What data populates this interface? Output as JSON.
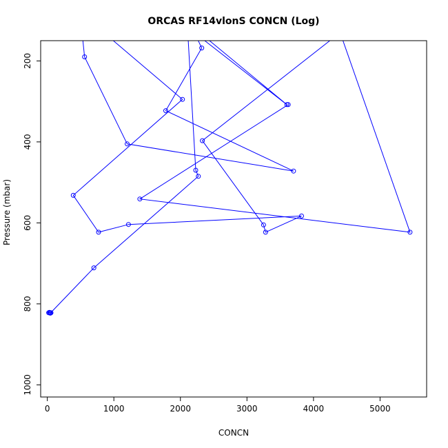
{
  "chart_data": {
    "type": "line",
    "title": "ORCAS RF14vlonS CONCN (Log)",
    "xlabel": "CONCN",
    "ylabel": "Pressure (mbar)",
    "xlim": [
      -100,
      5700
    ],
    "ylim": [
      1030,
      150
    ],
    "y_reversed": true,
    "grid": false,
    "x_ticks": [
      0,
      1000,
      2000,
      3000,
      4000,
      5000
    ],
    "y_ticks": [
      200,
      400,
      600,
      800,
      1000
    ],
    "x_tick_labels": [
      "0",
      "1000",
      "2000",
      "3000",
      "4000",
      "5000"
    ],
    "y_tick_labels": [
      "200",
      "400",
      "600",
      "800",
      "1000"
    ],
    "colors": {
      "series": "#0000ff"
    },
    "series": [
      {
        "points": [
          [
            20,
            822
          ],
          [
            40,
            822
          ],
          [
            55,
            822
          ],
          [
            30,
            821
          ],
          [
            45,
            823
          ],
          [
            700,
            711
          ],
          [
            2270,
            485
          ],
          [
            2230,
            470
          ],
          [
            2100,
            100
          ],
          [
            2290,
            130
          ],
          [
            3600,
            308
          ],
          [
            2210,
            130
          ],
          [
            2320,
            168
          ],
          [
            1780,
            323
          ],
          [
            3700,
            472
          ],
          [
            1200,
            405
          ],
          [
            560,
            190
          ],
          [
            490,
            80
          ],
          [
            2030,
            295
          ],
          [
            390,
            532
          ],
          [
            770,
            623
          ],
          [
            1220,
            604
          ],
          [
            3820,
            583
          ],
          [
            3280,
            623
          ],
          [
            3250,
            605
          ],
          [
            2330,
            397
          ],
          [
            4400,
            130
          ],
          [
            5450,
            623
          ],
          [
            1390,
            541
          ],
          [
            3620,
            308
          ]
        ]
      }
    ]
  }
}
